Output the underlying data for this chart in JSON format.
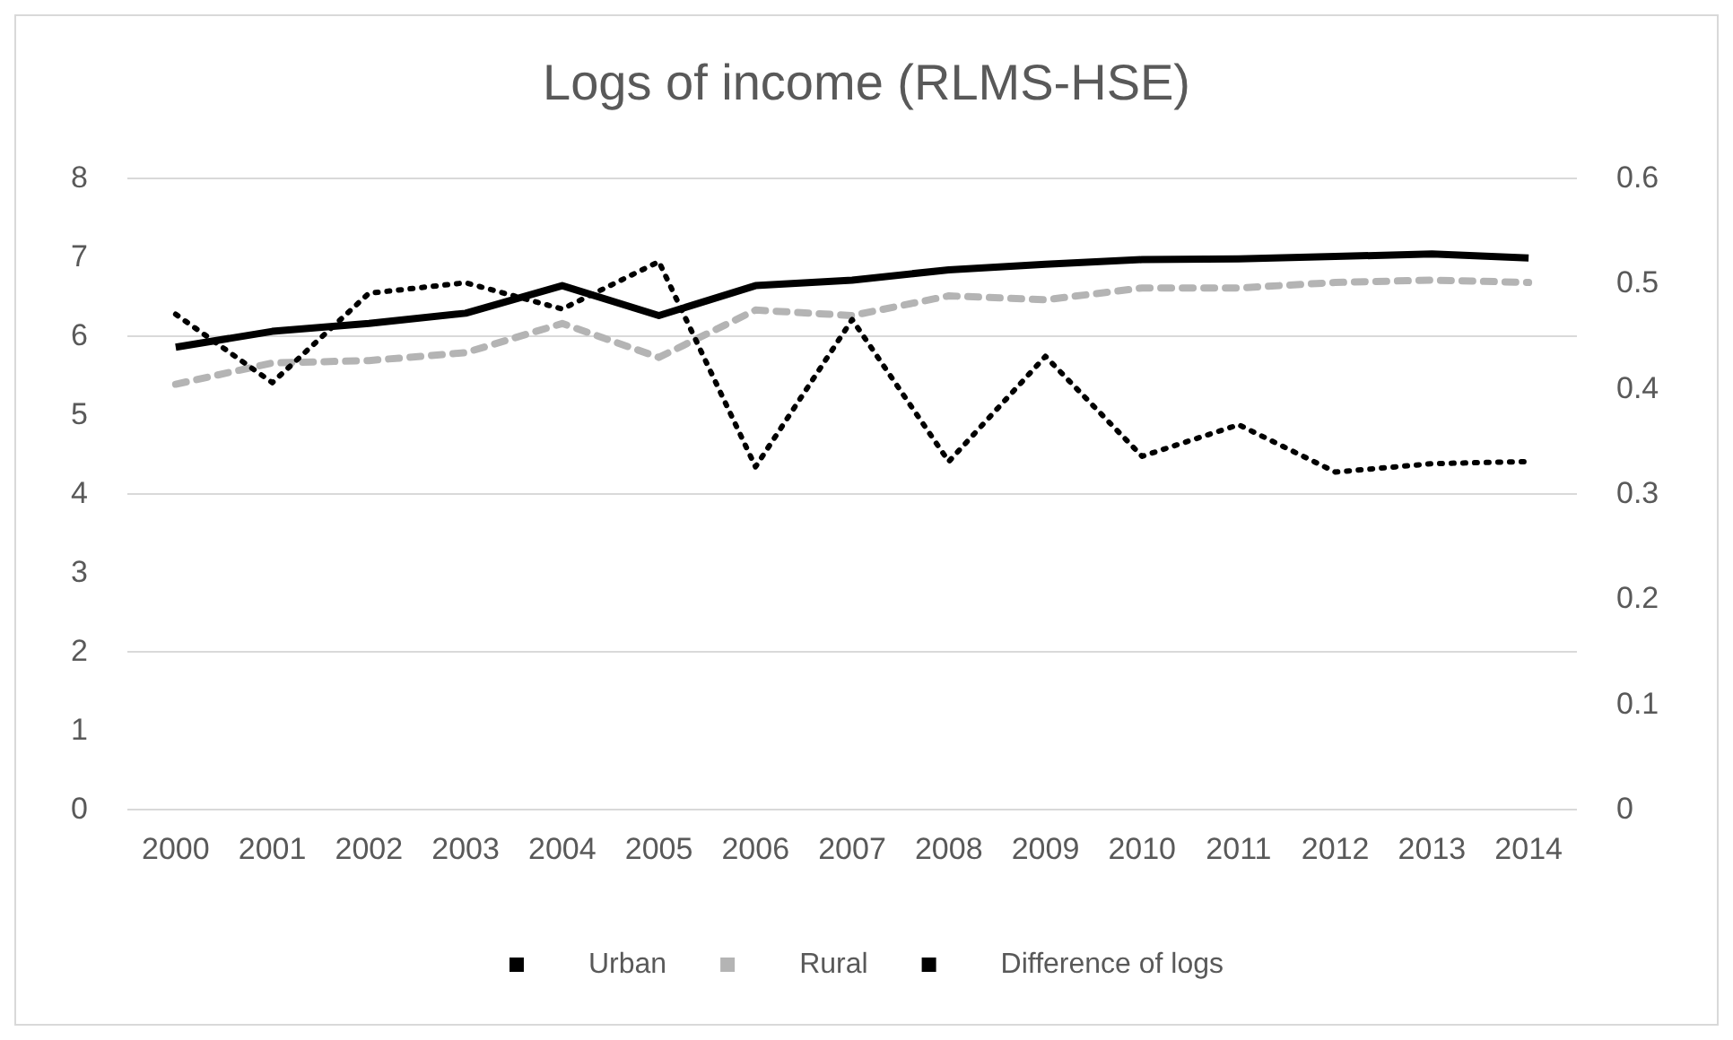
{
  "chart_data": {
    "type": "line",
    "title": "Logs of income (RLMS-HSE)",
    "categories": [
      "2000",
      "2001",
      "2002",
      "2003",
      "2004",
      "2005",
      "2006",
      "2007",
      "2008",
      "2009",
      "2010",
      "2011",
      "2012",
      "2013",
      "2014"
    ],
    "series": [
      {
        "name": "Urban",
        "color": "#000000",
        "line_style": "solid",
        "values": [
          5.85,
          6.05,
          6.15,
          6.28,
          6.63,
          6.25,
          6.63,
          6.7,
          6.83,
          6.9,
          6.96,
          6.97,
          7.0,
          7.03,
          6.98
        ]
      },
      {
        "name": "Rural",
        "color": "#b4b4b4",
        "line_style": "dashed",
        "values": [
          5.38,
          5.65,
          5.68,
          5.78,
          6.15,
          5.72,
          6.32,
          6.25,
          6.5,
          6.45,
          6.6,
          6.6,
          6.67,
          6.7,
          6.67
        ]
      },
      {
        "name": "Difference of logs",
        "color": "#000000",
        "line_style": "dotted",
        "axis": "y2",
        "values": [
          0.47,
          0.405,
          0.49,
          0.5,
          0.475,
          0.52,
          0.325,
          0.465,
          0.33,
          0.43,
          0.335,
          0.365,
          0.32,
          0.328,
          0.33
        ]
      }
    ],
    "ylim": [
      0,
      8
    ],
    "yticks": [
      0,
      1,
      2,
      3,
      4,
      5,
      6,
      7,
      8
    ],
    "y2lim": [
      0,
      0.6
    ],
    "y2ticks": [
      0,
      0.1,
      0.2,
      0.3,
      0.4,
      0.5,
      0.6
    ],
    "grid": "y",
    "legend": "bottom",
    "marker": "none"
  }
}
